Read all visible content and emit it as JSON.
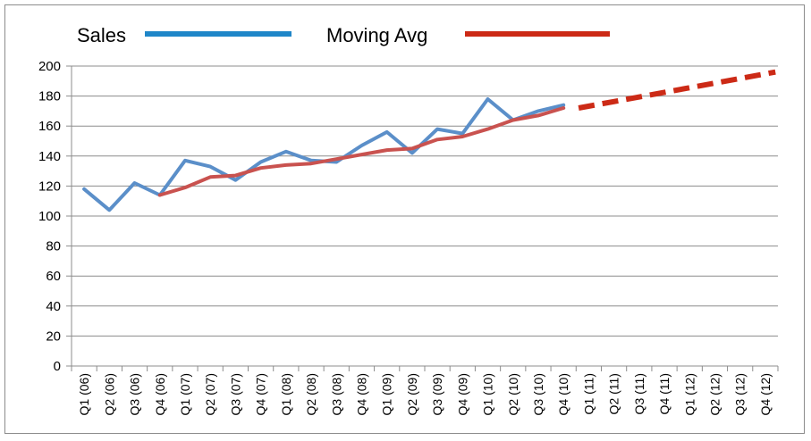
{
  "chart_data": {
    "type": "line",
    "title": "",
    "xlabel": "",
    "ylabel": "",
    "ylim": [
      0,
      200
    ],
    "yticks": [
      0,
      20,
      40,
      60,
      80,
      100,
      120,
      140,
      160,
      180,
      200
    ],
    "grid": true,
    "legend_position": "top",
    "categories": [
      "Q1 (06)",
      "Q2 (06)",
      "Q3 (06)",
      "Q4 (06)",
      "Q1 (07)",
      "Q2 (07)",
      "Q3 (07)",
      "Q4 (07)",
      "Q1 (08)",
      "Q2 (08)",
      "Q3 (08)",
      "Q4 (08)",
      "Q1 (09)",
      "Q2 (09)",
      "Q3 (09)",
      "Q4 (09)",
      "Q1 (10)",
      "Q2 (10)",
      "Q3 (10)",
      "Q4 (10)",
      "Q1 (11)",
      "Q2 (11)",
      "Q3 (11)",
      "Q4 (11)",
      "Q1 (12)",
      "Q2 (12)",
      "Q3 (12)",
      "Q4 (12)"
    ],
    "series": [
      {
        "name": "Sales",
        "color": "#5b8fc9",
        "legend_color": "#1f86c8",
        "values": [
          118,
          104,
          122,
          114,
          137,
          133,
          124,
          136,
          143,
          137,
          136,
          147,
          156,
          142,
          158,
          155,
          178,
          164,
          170,
          174,
          null,
          null,
          null,
          null,
          null,
          null,
          null,
          null
        ]
      },
      {
        "name": "Moving Avg",
        "color": "#c9524f",
        "legend_color": "#cc2a16",
        "values": [
          null,
          null,
          null,
          114,
          119,
          126,
          127,
          132,
          134,
          135,
          138,
          141,
          144,
          145,
          151,
          153,
          158,
          164,
          167,
          172,
          null,
          null,
          null,
          null,
          null,
          null,
          null,
          null
        ],
        "forecast": {
          "color": "#cc2a16",
          "style": "dashed",
          "points": [
            {
              "x": "Q4 (10)",
              "y": 172
            },
            {
              "x": "Q4 (12)",
              "y": 196
            }
          ]
        }
      }
    ]
  }
}
